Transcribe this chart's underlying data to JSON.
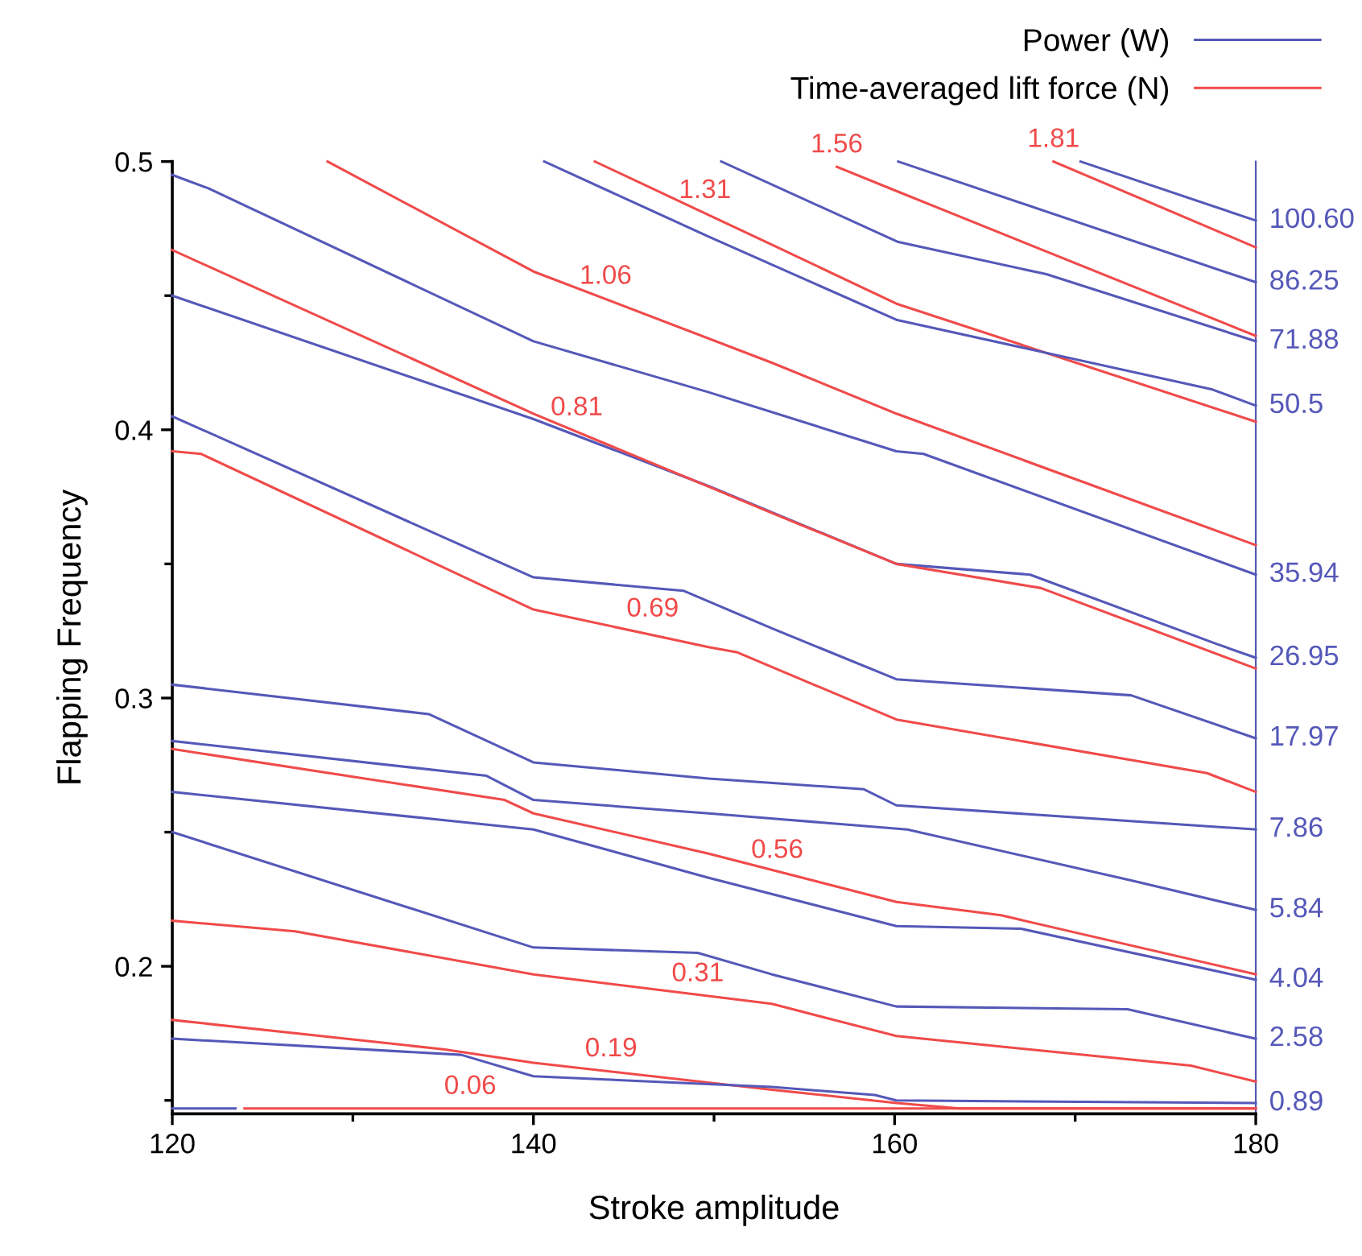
{
  "chart_data": {
    "type": "line",
    "xlabel": "Stroke amplitude",
    "ylabel": "Flapping Frequency",
    "xlim": [
      120,
      180
    ],
    "ylim": [
      0.145,
      0.5
    ],
    "xticks": [
      120,
      {
        "value": 130,
        "label": null
      },
      140,
      {
        "value": 150,
        "label": null
      },
      160,
      {
        "value": 170,
        "label": null
      },
      180
    ],
    "yticks": [
      {
        "value": 0.15,
        "label": null
      },
      0.2,
      {
        "value": 0.25,
        "label": null
      },
      0.3,
      {
        "value": 0.35,
        "label": null
      },
      0.4,
      {
        "value": 0.45,
        "label": null
      },
      0.5
    ],
    "grid": false,
    "legend": "top right",
    "marker": "none",
    "line_style": "solid",
    "series": [
      {
        "name": "Power (W)",
        "color": "#5558b8",
        "x": [
          170.3,
          180
        ],
        "values": [
          0.5,
          0.478
        ]
      },
      {
        "name": "Time-averaged lift force (N)",
        "color": "#f04a4a",
        "x": [
          168.8,
          180
        ],
        "values": [
          0.5,
          0.468
        ]
      },
      {
        "color": "#5558b8",
        "x": [
          160.2,
          180
        ],
        "values": [
          0.5,
          0.455
        ]
      },
      {
        "color": "#f04a4a",
        "x": [
          156.8,
          160.1,
          180
        ],
        "values": [
          0.498,
          0.489,
          0.435
        ]
      },
      {
        "color": "#5558b8",
        "x": [
          150.4,
          160.2,
          168.4,
          180
        ],
        "values": [
          0.5,
          0.47,
          0.458,
          0.433
        ]
      },
      {
        "color": "#f04a4a",
        "x": [
          143.4,
          153.2,
          160.1,
          180
        ],
        "values": [
          0.5,
          0.469,
          0.447,
          0.403
        ]
      },
      {
        "color": "#5558b8",
        "x": [
          140.6,
          149.7,
          160.1,
          177.6,
          180
        ],
        "values": [
          0.5,
          0.472,
          0.441,
          0.415,
          0.409
        ]
      },
      {
        "color": "#f04a4a",
        "x": [
          128.6,
          140,
          153.2,
          160.1,
          180
        ],
        "values": [
          0.5,
          0.459,
          0.425,
          0.406,
          0.357
        ]
      },
      {
        "color": "#5558b8",
        "x": [
          120,
          122,
          140,
          149.7,
          160.1,
          161.6,
          180
        ],
        "values": [
          0.495,
          0.49,
          0.433,
          0.414,
          0.392,
          0.391,
          0.346
        ]
      },
      {
        "color": "#5558b8",
        "x": [
          120,
          140,
          149.7,
          160.1,
          167.5,
          177.9,
          180
        ],
        "values": [
          0.45,
          0.404,
          0.379,
          0.35,
          0.346,
          0.32,
          0.315
        ]
      },
      {
        "color": "#f04a4a",
        "x": [
          120,
          140,
          153.2,
          160.1,
          168.1,
          180
        ],
        "values": [
          0.467,
          0.406,
          0.369,
          0.35,
          0.341,
          0.311
        ]
      },
      {
        "color": "#5558b8",
        "x": [
          120,
          140,
          148.3,
          153.2,
          160.1,
          173.1,
          180
        ],
        "values": [
          0.405,
          0.345,
          0.34,
          0.326,
          0.307,
          0.301,
          0.285
        ]
      },
      {
        "color": "#f04a4a",
        "x": [
          120,
          121.6,
          140,
          149.7,
          151.3,
          160.1,
          177.3,
          180
        ],
        "values": [
          0.392,
          0.391,
          0.333,
          0.319,
          0.317,
          0.292,
          0.272,
          0.265
        ]
      },
      {
        "color": "#5558b8",
        "x": [
          120,
          134.2,
          140,
          149.7,
          158.3,
          160.1,
          180
        ],
        "values": [
          0.305,
          0.294,
          0.276,
          0.27,
          0.266,
          0.26,
          0.251
        ]
      },
      {
        "color": "#5558b8",
        "x": [
          120,
          137.4,
          140,
          149.7,
          160.7,
          173.1,
          180
        ],
        "values": [
          0.284,
          0.271,
          0.262,
          0.257,
          0.251,
          0.232,
          0.221
        ]
      },
      {
        "color": "#f04a4a",
        "x": [
          120,
          138.4,
          140,
          149.7,
          160.1,
          165.9,
          180
        ],
        "values": [
          0.281,
          0.262,
          0.257,
          0.242,
          0.224,
          0.219,
          0.197
        ]
      },
      {
        "color": "#5558b8",
        "x": [
          120,
          140,
          149.7,
          160.1,
          167,
          180
        ],
        "values": [
          0.265,
          0.251,
          0.233,
          0.215,
          0.214,
          0.195
        ]
      },
      {
        "color": "#5558b8",
        "x": [
          120,
          140,
          149.1,
          153.2,
          160.1,
          172.9,
          180
        ],
        "values": [
          0.25,
          0.207,
          0.205,
          0.197,
          0.185,
          0.184,
          0.173
        ]
      },
      {
        "color": "#f04a4a",
        "x": [
          120,
          126.8,
          140,
          153.2,
          160.1,
          176.4,
          180
        ],
        "values": [
          0.217,
          0.213,
          0.197,
          0.186,
          0.174,
          0.163,
          0.157
        ]
      },
      {
        "color": "#f04a4a",
        "x": [
          120,
          135.1,
          140,
          153.2,
          160.1,
          163.6,
          180
        ],
        "values": [
          0.18,
          0.169,
          0.164,
          0.154,
          0.149,
          0.147,
          0.147
        ]
      },
      {
        "color": "#5558b8",
        "x": [
          120,
          136,
          140,
          153.2,
          158.9,
          160.1,
          180
        ],
        "values": [
          0.173,
          0.167,
          0.159,
          0.155,
          0.152,
          0.15,
          0.149
        ]
      },
      {
        "color": "#f04a4a",
        "x": [
          124,
          180
        ],
        "values": [
          0.147,
          0.147
        ]
      },
      {
        "color": "#5558b8",
        "x": [
          120,
          123.5
        ],
        "values": [
          0.147,
          0.147
        ]
      }
    ],
    "annotations": [
      {
        "text": "1.81",
        "x": 168.8,
        "y": 0.5
      },
      {
        "text": "1.56",
        "x": 156.8,
        "y": 0.498
      },
      {
        "text": "1.31",
        "x": 149.5,
        "y": 0.481
      },
      {
        "text": "1.06",
        "x": 144,
        "y": 0.449
      },
      {
        "text": "0.81",
        "x": 142.4,
        "y": 0.4
      },
      {
        "text": "0.69",
        "x": 146.6,
        "y": 0.325
      },
      {
        "text": "0.56",
        "x": 153.5,
        "y": 0.235
      },
      {
        "text": "0.31",
        "x": 149.1,
        "y": 0.189
      },
      {
        "text": "0.19",
        "x": 144.3,
        "y": 0.161
      },
      {
        "text": "0.06",
        "x": 136.5,
        "y": 0.147
      },
      {
        "text": "100.60",
        "x": 180,
        "y": 0.478
      },
      {
        "text": "86.25",
        "x": 180,
        "y": 0.455
      },
      {
        "text": "71.88",
        "x": 180,
        "y": 0.433
      },
      {
        "text": "50.5",
        "x": 180,
        "y": 0.409
      },
      {
        "text": "35.94",
        "x": 180,
        "y": 0.346
      },
      {
        "text": "26.95",
        "x": 180,
        "y": 0.315
      },
      {
        "text": "17.97",
        "x": 180,
        "y": 0.285
      },
      {
        "text": "7.86",
        "x": 180,
        "y": 0.251
      },
      {
        "text": "5.84",
        "x": 180,
        "y": 0.221
      },
      {
        "text": "4.04",
        "x": 180,
        "y": 0.195
      },
      {
        "text": "2.58",
        "x": 180,
        "y": 0.173
      },
      {
        "text": "0.89",
        "x": 180,
        "y": 0.149
      }
    ]
  }
}
